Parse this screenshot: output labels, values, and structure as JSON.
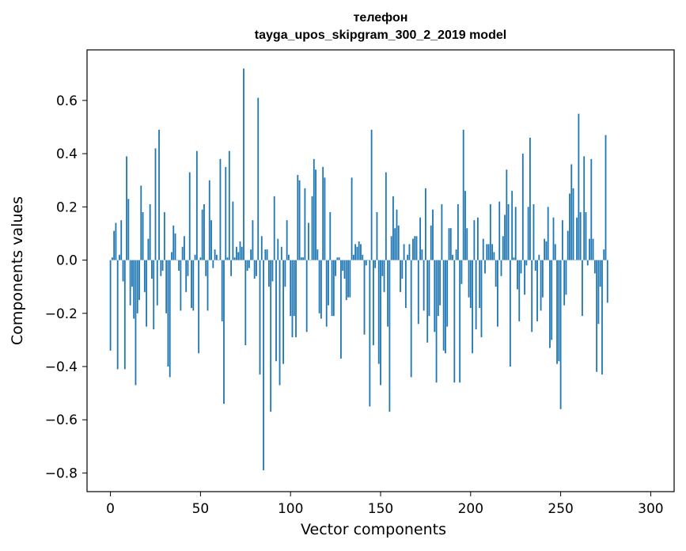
{
  "chart_data": {
    "type": "bar",
    "title": "телефон",
    "subtitle": "tayga_upos_skipgram_300_2_2019 model",
    "xlabel": "Vector components",
    "ylabel": "Components values",
    "bar_color": "#1f77b4",
    "xlim": [
      -13,
      313
    ],
    "ylim": [
      -0.87,
      0.79
    ],
    "xticks": [
      0,
      50,
      100,
      150,
      200,
      250,
      300
    ],
    "xtick_labels": [
      "0",
      "50",
      "100",
      "150",
      "200",
      "250",
      "300"
    ],
    "yticks": [
      -0.8,
      -0.6,
      -0.4,
      -0.2,
      0.0,
      0.2,
      0.4,
      0.6
    ],
    "ytick_labels": [
      "−0.8",
      "−0.6",
      "−0.4",
      "−0.2",
      "0.0",
      "0.2",
      "0.4",
      "0.6"
    ],
    "grid": false,
    "values": [
      -0.34,
      0.01,
      0.11,
      0.14,
      -0.41,
      0.02,
      0.15,
      -0.08,
      -0.41,
      0.39,
      0.23,
      -0.17,
      -0.1,
      -0.22,
      -0.47,
      -0.2,
      -0.15,
      0.28,
      0.18,
      -0.12,
      -0.25,
      0.08,
      0.21,
      -0.07,
      -0.26,
      0.42,
      -0.17,
      0.49,
      -0.06,
      -0.04,
      0.18,
      -0.2,
      -0.4,
      -0.44,
      0.03,
      0.13,
      0.1,
      0.0,
      -0.04,
      -0.19,
      0.05,
      0.09,
      -0.12,
      -0.06,
      0.33,
      -0.18,
      -0.19,
      0.02,
      0.41,
      -0.35,
      0.01,
      0.19,
      0.21,
      -0.06,
      -0.19,
      0.3,
      0.15,
      -0.03,
      0.04,
      0.02,
      0.0,
      0.38,
      -0.23,
      -0.54,
      0.35,
      0.01,
      0.41,
      -0.06,
      0.22,
      0.01,
      0.05,
      0.03,
      0.07,
      0.05,
      0.72,
      -0.32,
      -0.04,
      -0.03,
      0.04,
      0.15,
      -0.07,
      -0.06,
      0.61,
      -0.43,
      0.09,
      -0.79,
      0.04,
      0.04,
      -0.1,
      -0.57,
      -0.08,
      0.24,
      -0.38,
      0.08,
      -0.47,
      0.05,
      -0.39,
      -0.1,
      0.15,
      0.02,
      -0.21,
      -0.29,
      -0.21,
      -0.29,
      0.32,
      0.3,
      0.01,
      0.01,
      0.27,
      -0.27,
      0.14,
      0.0,
      0.24,
      0.38,
      0.34,
      0.04,
      -0.2,
      -0.22,
      0.35,
      0.31,
      -0.25,
      -0.17,
      0.18,
      -0.21,
      -0.21,
      -0.06,
      0.01,
      0.01,
      -0.37,
      -0.04,
      -0.07,
      -0.15,
      -0.14,
      -0.14,
      0.31,
      0.02,
      0.06,
      0.05,
      0.07,
      0.06,
      0.02,
      -0.28,
      -0.02,
      0.0,
      -0.55,
      0.49,
      -0.32,
      -0.03,
      0.18,
      -0.39,
      -0.47,
      -0.06,
      -0.12,
      0.33,
      -0.25,
      -0.57,
      0.09,
      0.24,
      0.12,
      0.19,
      0.13,
      -0.12,
      -0.07,
      0.06,
      -0.18,
      0.02,
      0.06,
      -0.44,
      0.08,
      0.09,
      0.09,
      -0.24,
      0.16,
      0.04,
      -0.19,
      0.27,
      -0.31,
      -0.21,
      0.13,
      0.19,
      -0.27,
      -0.46,
      -0.21,
      -0.17,
      0.21,
      -0.34,
      -0.35,
      -0.25,
      0.12,
      0.12,
      0.02,
      -0.46,
      0.04,
      0.21,
      -0.46,
      -0.09,
      0.49,
      0.26,
      0.12,
      -0.14,
      -0.18,
      -0.35,
      0.15,
      -0.26,
      0.16,
      -0.18,
      -0.29,
      0.08,
      -0.05,
      0.06,
      0.06,
      0.21,
      0.06,
      0.03,
      -0.1,
      -0.25,
      0.22,
      -0.06,
      0.09,
      0.17,
      0.34,
      0.21,
      -0.4,
      0.26,
      0.01,
      0.2,
      -0.11,
      -0.23,
      -0.05,
      0.4,
      -0.13,
      -0.02,
      0.2,
      0.46,
      -0.27,
      0.21,
      -0.04,
      -0.23,
      0.02,
      -0.19,
      -0.14,
      0.08,
      0.07,
      0.2,
      -0.33,
      -0.3,
      0.16,
      0.06,
      -0.39,
      -0.38,
      -0.56,
      0.15,
      -0.17,
      -0.13,
      0.11,
      0.25,
      0.36,
      0.27,
      0.0,
      0.16,
      0.55,
      0.18,
      -0.21,
      0.39,
      0.18,
      -0.02,
      0.08,
      0.38,
      0.08,
      -0.05,
      -0.42,
      -0.24,
      -0.1,
      -0.43,
      0.04,
      0.47,
      -0.16
    ]
  }
}
